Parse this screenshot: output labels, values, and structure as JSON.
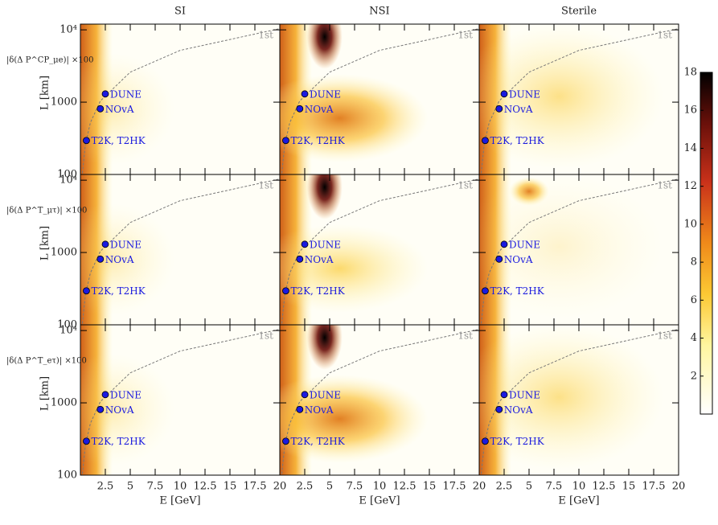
{
  "chart_data": {
    "type": "heatmap",
    "columns": [
      "SI",
      "NSI",
      "Sterile"
    ],
    "rows": [
      "|δ(Δ P^CP_μe)| ×100",
      "|δ(Δ P^T_μτ)| ×100",
      "|δ(Δ P^T_eτ)| ×100"
    ],
    "xlabel": "E [GeV]",
    "ylabel": "L [km]",
    "xlim": [
      0,
      20
    ],
    "xticks": [
      2.5,
      5,
      7.5,
      10,
      12.5,
      15,
      17.5,
      20
    ],
    "ylim": [
      100,
      12000
    ],
    "log_y": true,
    "yticks": [
      100,
      1000,
      {
        "value": 10000,
        "label": "10⁴"
      }
    ],
    "colorbar": {
      "lim": [
        0,
        18
      ],
      "ticks": [
        2,
        4,
        6,
        8,
        10,
        12,
        14,
        16,
        18
      ]
    },
    "points": {
      "names": [
        "DUNE",
        "NOvA",
        "T2K, T2HK"
      ],
      "color": "#1a1adf",
      "x": [
        2.5,
        2,
        0.6
      ],
      "y": [
        1300,
        810,
        295
      ]
    },
    "curve": {
      "label": "1st",
      "color": "#777",
      "x": [
        0.2,
        0.5,
        1,
        2,
        5,
        10,
        20
      ],
      "y": [
        104,
        260,
        520,
        1040,
        2600,
        5200,
        10400
      ]
    }
  }
}
